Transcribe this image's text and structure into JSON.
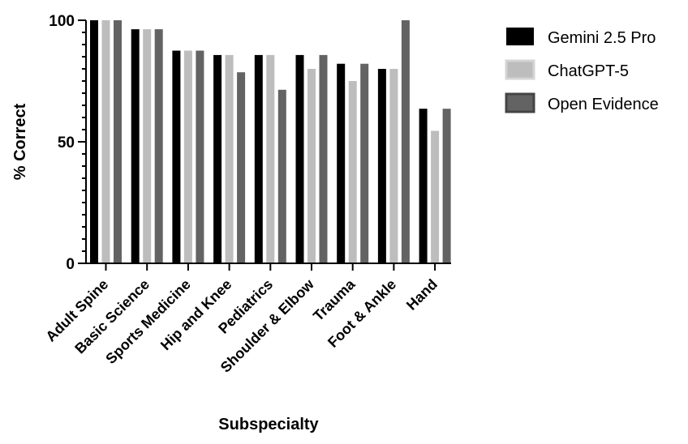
{
  "chart_data": {
    "type": "bar",
    "xlabel": "Subspecialty",
    "ylabel": "% Correct",
    "ylim": [
      0,
      100
    ],
    "yticks": [
      0,
      50,
      100
    ],
    "legend_position": "top-right",
    "categories": [
      "Adult Spine",
      "Basic Science",
      "Sports Medicine",
      "Hip and Knee",
      "Pediatrics",
      "Shoulder & Elbow",
      "Trauma",
      "Foot & Ankle",
      "Hand"
    ],
    "series": [
      {
        "name": "Gemini 2.5 Pro",
        "color": "#000000",
        "values": [
          100,
          96.3,
          87.5,
          85.7,
          85.7,
          85.7,
          82.1,
          80,
          63.6
        ]
      },
      {
        "name": "ChatGPT-5",
        "color": "#bdbdbd",
        "values": [
          100,
          96.3,
          87.5,
          85.7,
          85.7,
          80,
          75,
          80,
          54.5
        ]
      },
      {
        "name": "Open Evidence",
        "color": "#636363",
        "values": [
          100,
          96.3,
          87.5,
          78.6,
          71.4,
          85.7,
          82.1,
          100,
          63.6
        ]
      }
    ]
  }
}
